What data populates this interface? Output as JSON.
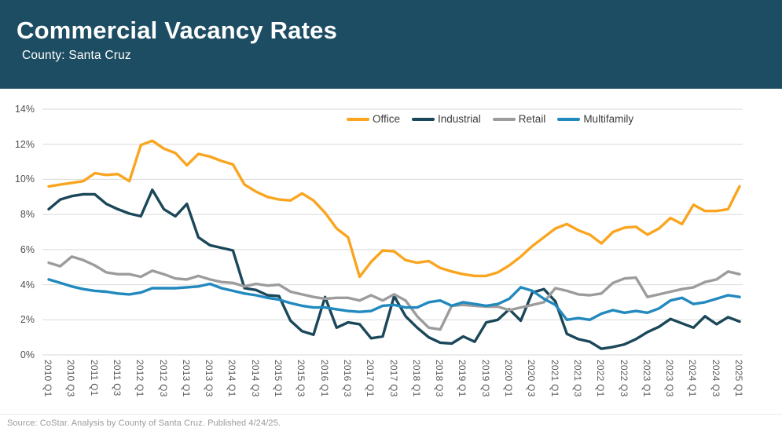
{
  "header": {
    "title": "Commercial Vacancy Rates",
    "subtitle": "County: Santa Cruz"
  },
  "footer": {
    "source": "Source: CoStar. Analysis by County of Santa Cruz. Published 4/24/25."
  },
  "colors": {
    "header_bg": "#1d4d63",
    "office": "#F9A51F",
    "industrial": "#1A4759",
    "retail": "#9C9C9C",
    "multifamily": "#2189BE",
    "gridline": "#D9D9D9",
    "y_tick_text": "#4F4F4F",
    "x_tick_text": "#5B5B5B",
    "legend_text": "#3B3B3B",
    "source_text": "#9B9B9B"
  },
  "chart_data": {
    "type": "line",
    "title": "Commercial Vacancy Rates",
    "subtitle": "County: Santa Cruz",
    "xlabel": "",
    "ylabel": "",
    "ylim": [
      0,
      14
    ],
    "ytick_step": 2,
    "ytick_suffix": "%",
    "grid": "horizontal",
    "legend_position": "top-center",
    "x_tick_every": 2,
    "x": [
      "2010 Q1",
      "2010 Q2",
      "2010 Q3",
      "2010 Q4",
      "2011 Q1",
      "2011 Q2",
      "2011 Q3",
      "2011 Q4",
      "2012 Q1",
      "2012 Q2",
      "2012 Q3",
      "2012 Q4",
      "2013 Q1",
      "2013 Q2",
      "2013 Q3",
      "2013 Q4",
      "2014 Q1",
      "2014 Q2",
      "2014 Q3",
      "2014 Q4",
      "2015 Q1",
      "2015 Q2",
      "2015 Q3",
      "2015 Q4",
      "2016 Q1",
      "2016 Q2",
      "2016 Q3",
      "2016 Q4",
      "2017 Q1",
      "2017 Q2",
      "2017 Q3",
      "2017 Q4",
      "2018 Q1",
      "2018 Q2",
      "2018 Q3",
      "2018 Q4",
      "2019 Q1",
      "2019 Q2",
      "2019 Q3",
      "2019 Q4",
      "2020 Q1",
      "2020 Q2",
      "2020 Q3",
      "2020 Q4",
      "2021 Q1",
      "2021 Q2",
      "2021 Q3",
      "2021 Q4",
      "2022 Q1",
      "2022 Q2",
      "2022 Q3",
      "2022 Q4",
      "2023 Q1",
      "2023 Q2",
      "2023 Q3",
      "2023 Q4",
      "2024 Q1",
      "2024 Q2",
      "2024 Q3",
      "2024 Q4",
      "2025 Q1"
    ],
    "series": [
      {
        "name": "Office",
        "color_key": "office",
        "values": [
          9.6,
          9.7,
          9.8,
          9.9,
          10.35,
          10.25,
          10.3,
          9.9,
          11.95,
          12.2,
          11.75,
          11.5,
          10.8,
          11.45,
          11.3,
          11.05,
          10.85,
          9.7,
          9.3,
          9.0,
          8.85,
          8.8,
          9.2,
          8.8,
          8.1,
          7.2,
          6.7,
          4.45,
          5.3,
          5.95,
          5.9,
          5.4,
          5.25,
          5.35,
          4.95,
          4.75,
          4.6,
          4.5,
          4.5,
          4.7,
          5.1,
          5.6,
          6.2,
          6.7,
          7.2,
          7.45,
          7.1,
          6.85,
          6.35,
          7.0,
          7.25,
          7.3,
          6.85,
          7.2,
          7.8,
          7.45,
          8.55,
          8.2,
          8.2,
          8.3,
          9.6
        ]
      },
      {
        "name": "Industrial",
        "color_key": "industrial",
        "values": [
          8.3,
          8.85,
          9.05,
          9.15,
          9.15,
          8.6,
          8.3,
          8.05,
          7.9,
          9.4,
          8.3,
          7.9,
          8.6,
          6.7,
          6.25,
          6.1,
          5.95,
          3.8,
          3.7,
          3.4,
          3.35,
          1.95,
          1.35,
          1.15,
          3.3,
          1.55,
          1.85,
          1.75,
          0.95,
          1.05,
          3.35,
          2.2,
          1.55,
          1.0,
          0.7,
          0.65,
          1.05,
          0.75,
          1.85,
          2.0,
          2.6,
          1.95,
          3.55,
          3.75,
          3.05,
          1.2,
          0.9,
          0.75,
          0.35,
          0.45,
          0.6,
          0.9,
          1.3,
          1.6,
          2.05,
          1.8,
          1.55,
          2.2,
          1.75,
          2.15,
          1.9
        ]
      },
      {
        "name": "Retail",
        "color_key": "retail",
        "values": [
          5.25,
          5.05,
          5.6,
          5.4,
          5.1,
          4.7,
          4.6,
          4.6,
          4.45,
          4.8,
          4.6,
          4.35,
          4.3,
          4.5,
          4.3,
          4.15,
          4.1,
          3.9,
          4.05,
          3.95,
          4.0,
          3.6,
          3.45,
          3.3,
          3.2,
          3.25,
          3.25,
          3.1,
          3.4,
          3.1,
          3.45,
          3.1,
          2.2,
          1.55,
          1.45,
          2.8,
          2.85,
          2.8,
          2.75,
          2.75,
          2.55,
          2.7,
          2.85,
          3.0,
          3.8,
          3.65,
          3.45,
          3.4,
          3.5,
          4.1,
          4.35,
          4.4,
          3.3,
          3.45,
          3.6,
          3.75,
          3.85,
          4.15,
          4.3,
          4.75,
          4.6
        ]
      },
      {
        "name": "Multifamily",
        "color_key": "multifamily",
        "values": [
          4.3,
          4.1,
          3.9,
          3.75,
          3.65,
          3.6,
          3.5,
          3.45,
          3.55,
          3.8,
          3.8,
          3.8,
          3.85,
          3.9,
          4.05,
          3.8,
          3.65,
          3.5,
          3.4,
          3.25,
          3.15,
          2.95,
          2.8,
          2.7,
          2.7,
          2.6,
          2.5,
          2.45,
          2.5,
          2.8,
          2.85,
          2.7,
          2.7,
          3.0,
          3.1,
          2.8,
          3.0,
          2.9,
          2.8,
          2.9,
          3.2,
          3.85,
          3.65,
          3.2,
          2.85,
          2.0,
          2.1,
          2.0,
          2.35,
          2.55,
          2.4,
          2.5,
          2.4,
          2.65,
          3.1,
          3.25,
          2.9,
          3.0,
          3.2,
          3.4,
          3.3
        ]
      }
    ]
  }
}
